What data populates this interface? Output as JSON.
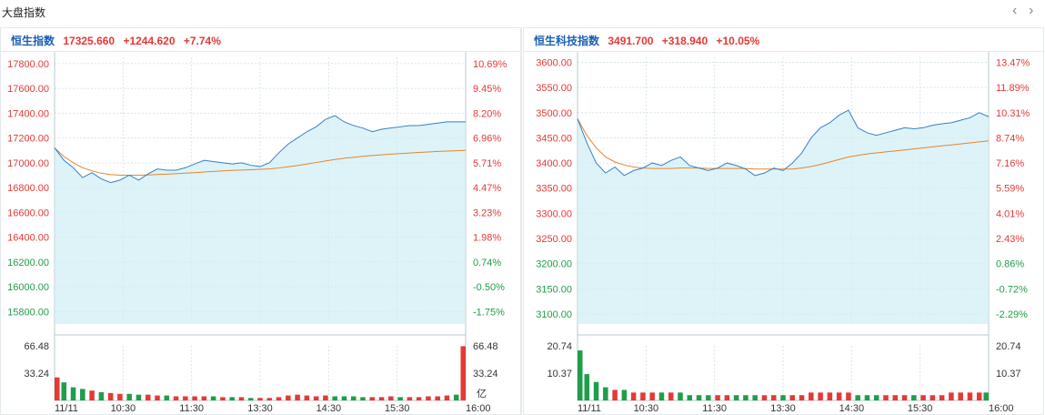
{
  "header": {
    "title": "大盘指数",
    "prev_icon": "‹",
    "next_icon": "›"
  },
  "colors": {
    "up": "#e53935",
    "down": "#1e9e4a",
    "line": "#3a7fc4",
    "avg": "#e3862c",
    "fill": "#cfeef5",
    "grid": "#d8e6ea",
    "axis": "#b9c9ce"
  },
  "chart_data": [
    {
      "type": "line",
      "title": "恒生指数",
      "last": "17325.660",
      "change": "+1244.620",
      "change_pct": "+7.74%",
      "x_ticks": [
        "11/11",
        "10:30",
        "11:30",
        "13:30",
        "14:30",
        "15:30",
        "16:00"
      ],
      "ylim": [
        15700,
        17850
      ],
      "y_ticks": [
        "17800.00",
        "17600.00",
        "17400.00",
        "17200.00",
        "17000.00",
        "16800.00",
        "16600.00",
        "16400.00",
        "16200.00",
        "16000.00",
        "15800.00"
      ],
      "pct_ticks": [
        "10.69%",
        "9.45%",
        "8.20%",
        "6.96%",
        "5.71%",
        "4.47%",
        "3.23%",
        "1.98%",
        "0.74%",
        "-0.50%",
        "-1.75%"
      ],
      "prev_close_index": 8,
      "price": [
        17120,
        17020,
        16960,
        16880,
        16920,
        16870,
        16840,
        16860,
        16900,
        16860,
        16910,
        16950,
        16940,
        16940,
        16960,
        16990,
        17020,
        17010,
        17000,
        16990,
        17000,
        16980,
        16970,
        17000,
        17080,
        17150,
        17200,
        17250,
        17290,
        17350,
        17380,
        17330,
        17300,
        17280,
        17250,
        17270,
        17280,
        17290,
        17300,
        17300,
        17310,
        17320,
        17330,
        17330,
        17330
      ],
      "avg": [
        17120,
        17050,
        17000,
        16960,
        16935,
        16915,
        16905,
        16900,
        16900,
        16900,
        16902,
        16905,
        16908,
        16912,
        16916,
        16920,
        16925,
        16930,
        16935,
        16938,
        16941,
        16944,
        16947,
        16950,
        16958,
        16968,
        16978,
        16990,
        17002,
        17014,
        17026,
        17036,
        17044,
        17052,
        17058,
        17064,
        17069,
        17074,
        17079,
        17083,
        17087,
        17091,
        17094,
        17097,
        17100
      ],
      "vol_max": 66.48,
      "vol_ticks": [
        "66.48",
        "33.24"
      ],
      "vol_unit": "亿",
      "volume": [
        28,
        22,
        16,
        14,
        12,
        10,
        9,
        8,
        8,
        7,
        7,
        6,
        6,
        5,
        5,
        5,
        5,
        5,
        4,
        4,
        4,
        3,
        3,
        3,
        4,
        6,
        7,
        6,
        5,
        6,
        5,
        5,
        5,
        4,
        4,
        4,
        5,
        4,
        4,
        4,
        5,
        5,
        6,
        7,
        66
      ],
      "vol_up": [
        1,
        0,
        0,
        0,
        1,
        0,
        1,
        1,
        0,
        0,
        1,
        1,
        0,
        1,
        1,
        1,
        1,
        0,
        1,
        0,
        1,
        0,
        1,
        1,
        1,
        1,
        1,
        1,
        1,
        1,
        0,
        0,
        0,
        0,
        1,
        1,
        1,
        0,
        1,
        1,
        1,
        1,
        1,
        0,
        1
      ]
    },
    {
      "type": "line",
      "title": "恒生科技指数",
      "last": "3491.700",
      "change": "+318.940",
      "change_pct": "+10.05%",
      "x_ticks": [
        "11/11",
        "10:30",
        "11:30",
        "13:30",
        "14:30",
        "15:30",
        "16:00"
      ],
      "ylim": [
        3080,
        3610
      ],
      "y_ticks": [
        "3600.00",
        "3550.00",
        "3500.00",
        "3450.00",
        "3400.00",
        "3350.00",
        "3300.00",
        "3250.00",
        "3200.00",
        "3150.00",
        "3100.00"
      ],
      "pct_ticks": [
        "13.47%",
        "11.89%",
        "10.31%",
        "8.74%",
        "7.16%",
        "5.59%",
        "4.01%",
        "2.43%",
        "0.86%",
        "-0.72%",
        "-2.29%"
      ],
      "prev_close_index": 8,
      "price": [
        3488,
        3440,
        3400,
        3380,
        3392,
        3375,
        3385,
        3390,
        3400,
        3395,
        3405,
        3412,
        3395,
        3390,
        3385,
        3390,
        3400,
        3395,
        3388,
        3375,
        3380,
        3390,
        3385,
        3400,
        3420,
        3450,
        3470,
        3480,
        3495,
        3505,
        3470,
        3460,
        3455,
        3460,
        3465,
        3470,
        3468,
        3470,
        3475,
        3478,
        3480,
        3485,
        3490,
        3500,
        3492
      ],
      "avg": [
        3488,
        3455,
        3430,
        3412,
        3402,
        3396,
        3392,
        3390,
        3389,
        3389,
        3389,
        3390,
        3390,
        3390,
        3389,
        3389,
        3389,
        3389,
        3389,
        3388,
        3388,
        3388,
        3388,
        3388,
        3390,
        3393,
        3397,
        3402,
        3407,
        3412,
        3415,
        3418,
        3420,
        3422,
        3424,
        3426,
        3428,
        3430,
        3432,
        3434,
        3436,
        3438,
        3440,
        3442,
        3444
      ],
      "vol_max": 20.74,
      "vol_ticks": [
        "20.74",
        "10.37"
      ],
      "vol_unit": "",
      "volume": [
        19,
        10,
        7,
        5,
        4,
        4,
        3,
        3,
        3,
        3,
        3,
        3,
        2,
        2,
        2,
        2,
        2,
        2,
        2,
        2,
        2,
        2,
        2,
        2,
        2,
        3,
        3,
        3,
        3,
        3,
        2,
        2,
        2,
        2,
        2,
        2,
        2,
        2,
        2,
        2,
        3,
        3,
        3,
        3,
        3
      ],
      "vol_up": [
        0,
        0,
        0,
        0,
        1,
        0,
        1,
        1,
        1,
        0,
        1,
        0,
        0,
        0,
        0,
        1,
        1,
        0,
        0,
        0,
        1,
        1,
        0,
        1,
        1,
        1,
        1,
        1,
        1,
        1,
        0,
        0,
        0,
        1,
        1,
        1,
        0,
        1,
        1,
        1,
        1,
        1,
        1,
        1,
        0
      ]
    }
  ]
}
